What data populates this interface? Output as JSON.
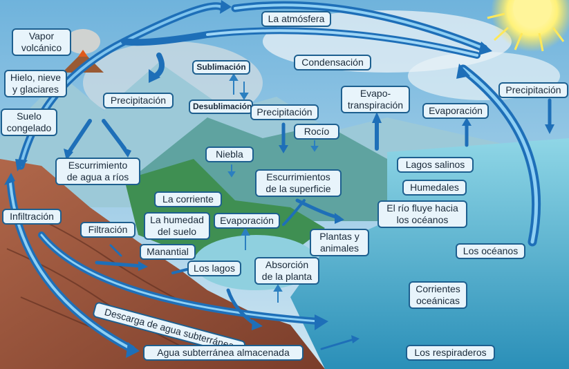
{
  "labels": {
    "atmosfera": "La atmósfera",
    "vapor_volcanico": "Vapor\nvolcánico",
    "hielo": "Hielo, nieve\ny glaciares",
    "suelo_congelado": "Suelo\ncongelado",
    "precipitacion_left": "Precipitación",
    "sublimacion": "Sublimación",
    "desublimacion": "Desublimación",
    "condensacion": "Condensación",
    "precipitacion_center": "Precipitación",
    "evapotranspiracion": "Evapo-\ntranspiración",
    "evaporacion_right": "Evaporación",
    "precipitacion_right": "Precipitación",
    "rocio": "Rocío",
    "niebla": "Niebla",
    "escurrimiento_rios": "Escurrimiento\nde agua a ríos",
    "escurrimientos_superficie": "Escurrimientos\nde la superficie",
    "lagos_salinos": "Lagos salinos",
    "humedales": "Humedales",
    "la_corriente": "La corriente",
    "infiltracion": "Infiltración",
    "humedad_suelo": "La humedad\ndel suelo",
    "evaporacion_center": "Evaporación",
    "rio_oceanos": "El río fluye hacia\nlos océanos",
    "filtracion": "Filtración",
    "plantas_animales": "Plantas y\nanimales",
    "manantial": "Manantial",
    "los_oceanos": "Los océanos",
    "los_lagos": "Los lagos",
    "absorcion": "Absorción\nde la planta",
    "corrientes_oceanicas": "Corrientes\noceánicas",
    "descarga": "Descarga de agua subterránea",
    "agua_almacenada": "Agua subterránea almacenada",
    "respiraderos": "Los respiraderos"
  }
}
